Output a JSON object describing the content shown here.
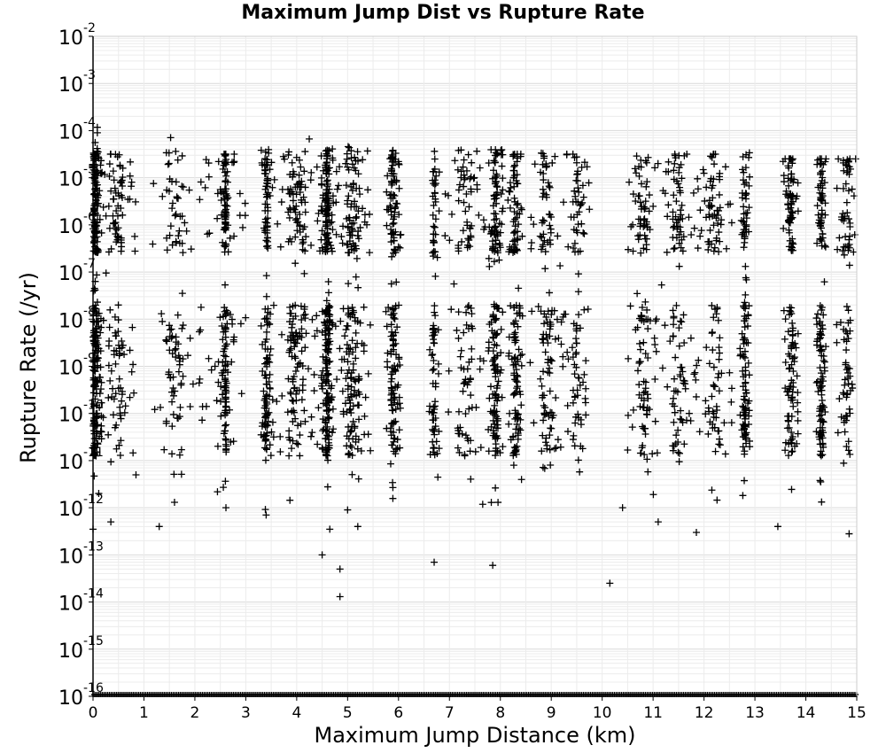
{
  "chart_data": {
    "type": "scatter",
    "title": "Maximum Jump Dist vs Rupture Rate",
    "xlabel": "Maximum Jump Distance (km)",
    "ylabel": "Rupture Rate (/yr)",
    "xlim": [
      0,
      15
    ],
    "ylim": [
      1e-16,
      0.01
    ],
    "yscale": "log",
    "xticks": [
      0,
      1,
      2,
      3,
      4,
      5,
      6,
      7,
      8,
      9,
      10,
      11,
      12,
      13,
      14,
      15
    ],
    "yticks": [
      {
        "base": "10",
        "exp": "-2",
        "value": 0.01
      },
      {
        "base": "10",
        "exp": "-3",
        "value": 0.001
      },
      {
        "base": "10",
        "exp": "-4",
        "value": 0.0001
      },
      {
        "base": "10",
        "exp": "-5",
        "value": 1e-05
      },
      {
        "base": "10",
        "exp": "-6",
        "value": 1e-06
      },
      {
        "base": "10",
        "exp": "-7",
        "value": 1e-07
      },
      {
        "base": "10",
        "exp": "-8",
        "value": 1e-08
      },
      {
        "base": "10",
        "exp": "-9",
        "value": 1e-09
      },
      {
        "base": "10",
        "exp": "-10",
        "value": 1e-10
      },
      {
        "base": "10",
        "exp": "-11",
        "value": 1e-11
      },
      {
        "base": "10",
        "exp": "-12",
        "value": 1e-12
      },
      {
        "base": "10",
        "exp": "-13",
        "value": 1e-13
      },
      {
        "base": "10",
        "exp": "-14",
        "value": 1e-14
      },
      {
        "base": "10",
        "exp": "-15",
        "value": 1e-15
      },
      {
        "base": "10",
        "exp": "-16",
        "value": 1e-16
      }
    ],
    "grid": true,
    "marker": "+",
    "marker_color": "#000000",
    "clusters": [
      {
        "x": 0.05,
        "spread": 0.12,
        "n": 260,
        "ymin_exp": -12,
        "ymax_exp": -3.5
      },
      {
        "x": 0.45,
        "spread": 0.4,
        "n": 140,
        "ymin_exp": -11.5,
        "ymax_exp": -4.5
      },
      {
        "x": 1.6,
        "spread": 0.5,
        "n": 110,
        "ymin_exp": -12,
        "ymax_exp": -4
      },
      {
        "x": 2.6,
        "spread": 0.05,
        "n": 110,
        "ymin_exp": -12,
        "ymax_exp": -4.5
      },
      {
        "x": 2.6,
        "spread": 0.5,
        "n": 80,
        "ymin_exp": -12,
        "ymax_exp": -4.5
      },
      {
        "x": 3.4,
        "spread": 0.1,
        "n": 140,
        "ymin_exp": -12.3,
        "ymax_exp": -4.3
      },
      {
        "x": 4.0,
        "spread": 0.5,
        "n": 200,
        "ymin_exp": -12,
        "ymax_exp": -4
      },
      {
        "x": 4.6,
        "spread": 0.12,
        "n": 250,
        "ymin_exp": -12,
        "ymax_exp": -4.2
      },
      {
        "x": 5.1,
        "spread": 0.35,
        "n": 200,
        "ymin_exp": -12,
        "ymax_exp": -4.2
      },
      {
        "x": 5.9,
        "spread": 0.15,
        "n": 180,
        "ymin_exp": -12.2,
        "ymax_exp": -4.3
      },
      {
        "x": 6.7,
        "spread": 0.1,
        "n": 90,
        "ymin_exp": -11.5,
        "ymax_exp": -4
      },
      {
        "x": 7.3,
        "spread": 0.4,
        "n": 120,
        "ymin_exp": -12,
        "ymax_exp": -4.3
      },
      {
        "x": 7.9,
        "spread": 0.15,
        "n": 180,
        "ymin_exp": -12,
        "ymax_exp": -4.3
      },
      {
        "x": 8.3,
        "spread": 0.15,
        "n": 150,
        "ymin_exp": -12,
        "ymax_exp": -4.5
      },
      {
        "x": 8.9,
        "spread": 0.35,
        "n": 130,
        "ymin_exp": -12,
        "ymax_exp": -4.3
      },
      {
        "x": 9.5,
        "spread": 0.25,
        "n": 100,
        "ymin_exp": -12,
        "ymax_exp": -4.5
      },
      {
        "x": 10.8,
        "spread": 0.3,
        "n": 130,
        "ymin_exp": -12.2,
        "ymax_exp": -4.5
      },
      {
        "x": 11.5,
        "spread": 0.35,
        "n": 120,
        "ymin_exp": -12.3,
        "ymax_exp": -4.5
      },
      {
        "x": 12.2,
        "spread": 0.35,
        "n": 120,
        "ymin_exp": -12,
        "ymax_exp": -4.5
      },
      {
        "x": 12.8,
        "spread": 0.1,
        "n": 130,
        "ymin_exp": -12,
        "ymax_exp": -4.3
      },
      {
        "x": 13.7,
        "spread": 0.15,
        "n": 150,
        "ymin_exp": -12,
        "ymax_exp": -4.6
      },
      {
        "x": 14.3,
        "spread": 0.1,
        "n": 150,
        "ymin_exp": -12.3,
        "ymax_exp": -4.6
      },
      {
        "x": 14.8,
        "spread": 0.2,
        "n": 100,
        "ymin_exp": -11.6,
        "ymax_exp": -4.6
      }
    ],
    "outliers": [
      {
        "x": 0.35,
        "y": 5e-13
      },
      {
        "x": 1.3,
        "y": 4e-13
      },
      {
        "x": 3.4,
        "y": 7e-13
      },
      {
        "x": 4.5,
        "y": 1e-13
      },
      {
        "x": 4.65,
        "y": 3.5e-13
      },
      {
        "x": 4.85,
        "y": 5e-14
      },
      {
        "x": 4.85,
        "y": 1.3e-14
      },
      {
        "x": 5.0,
        "y": 9e-13
      },
      {
        "x": 5.2,
        "y": 4e-13
      },
      {
        "x": 6.7,
        "y": 7e-14
      },
      {
        "x": 7.85,
        "y": 6e-14
      },
      {
        "x": 10.15,
        "y": 2.5e-14
      },
      {
        "x": 10.4,
        "y": 1e-12
      },
      {
        "x": 11.1,
        "y": 5e-13
      },
      {
        "x": 11.85,
        "y": 3e-13
      },
      {
        "x": 13.45,
        "y": 4e-13
      },
      {
        "x": 14.85,
        "y": 2.8e-13
      },
      {
        "x": 0.0,
        "y": 3.5e-13
      }
    ],
    "baseline_row": {
      "y": 1e-16,
      "n": 420
    }
  }
}
